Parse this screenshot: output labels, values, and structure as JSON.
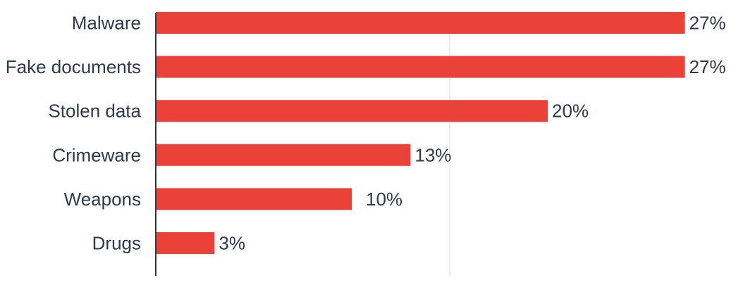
{
  "chart_data": {
    "type": "bar",
    "orientation": "horizontal",
    "categories": [
      "Malware",
      "Fake documents",
      "Stolen data",
      "Crimeware",
      "Weapons",
      "Drugs"
    ],
    "values": [
      27,
      27,
      20,
      13,
      10,
      3
    ],
    "value_labels": [
      "27%",
      "27%",
      "20%",
      "13%",
      "10%",
      "3%"
    ],
    "unit": "%",
    "xlim": [
      0,
      30
    ],
    "gridlines": [
      15
    ],
    "grid": true,
    "legend": "none",
    "bar_color": "#ea4138",
    "text_color": "#2f3a4d",
    "title": "",
    "xlabel": "",
    "ylabel": ""
  }
}
